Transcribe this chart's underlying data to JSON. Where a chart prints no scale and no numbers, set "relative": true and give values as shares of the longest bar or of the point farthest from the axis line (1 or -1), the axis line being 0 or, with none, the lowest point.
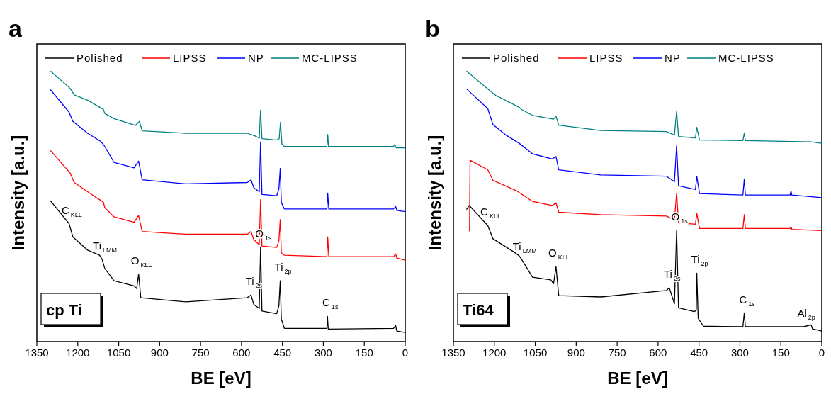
{
  "chart_data": [
    {
      "type": "line",
      "title": "a",
      "xlabel": "BE [eV]",
      "ylabel": "Intensity [a.u.]",
      "relative": true,
      "xlim": [
        1350,
        0
      ],
      "xticks": [
        1350,
        1200,
        1050,
        900,
        750,
        600,
        450,
        300,
        150,
        0
      ],
      "grid": false,
      "legend": "top",
      "marker": "none",
      "line_style": "solid",
      "annotations": [
        "cp Ti",
        {
          "text": "C$_{KLL}$",
          "x": 1232,
          "y": 0.436
        },
        {
          "text": "Ti$_{LMM}$",
          "x": 1111,
          "y": 0.304
        },
        {
          "text": "O$_{KLL}$",
          "x": 977,
          "y": 0.25
        },
        {
          "text": "Ti$_{2s}$",
          "x": 565,
          "y": 0.172
        },
        {
          "text": "O$_{1s}$",
          "x": 530,
          "y": 0.348
        },
        {
          "text": "Ti$_{2p}$",
          "x": 458,
          "y": 0.225
        },
        {
          "text": "C$_{1s}$",
          "x": 285,
          "y": 0.093
        }
      ],
      "series": [
        {
          "name": "Polished",
          "color": "#000000",
          "x": [
            1300,
            1232,
            1218,
            1164,
            1120,
            1111,
            1101,
            1067,
            994,
            984,
            977,
            969,
            804,
            579,
            565,
            555,
            535,
            530,
            525,
            471,
            463,
            458,
            454,
            443,
            287,
            285,
            282,
            43,
            35,
            31,
            0
          ],
          "values": [
            0.52,
            0.436,
            0.387,
            0.338,
            0.319,
            0.304,
            0.27,
            0.225,
            0.206,
            0.196,
            0.25,
            0.162,
            0.147,
            0.162,
            0.172,
            0.137,
            0.123,
            0.348,
            0.113,
            0.103,
            0.132,
            0.225,
            0.083,
            0.049,
            0.049,
            0.093,
            0.046,
            0.049,
            0.059,
            0.039,
            0.034
          ]
        },
        {
          "name": "LIPSS",
          "color": "#ff0000",
          "x": [
            1300,
            1228,
            1213,
            1164,
            1106,
            1101,
            1067,
            994,
            977,
            964,
            804,
            579,
            565,
            555,
            535,
            530,
            525,
            471,
            463,
            458,
            454,
            443,
            287,
            284,
            280,
            43,
            35,
            31,
            0
          ],
          "values": [
            0.706,
            0.623,
            0.588,
            0.554,
            0.515,
            0.495,
            0.461,
            0.441,
            0.466,
            0.407,
            0.397,
            0.397,
            0.407,
            0.377,
            0.358,
            0.525,
            0.353,
            0.348,
            0.373,
            0.451,
            0.328,
            0.319,
            0.314,
            0.387,
            0.314,
            0.314,
            0.324,
            0.309,
            0.301
          ]
        },
        {
          "name": "NP",
          "color": "#0000ff",
          "x": [
            1300,
            1232,
            1218,
            1164,
            1116,
            1101,
            1067,
            994,
            977,
            964,
            804,
            579,
            565,
            555,
            535,
            530,
            525,
            471,
            463,
            458,
            454,
            443,
            287,
            284,
            280,
            43,
            35,
            31,
            0
          ],
          "values": [
            0.931,
            0.848,
            0.814,
            0.77,
            0.74,
            0.721,
            0.662,
            0.642,
            0.667,
            0.598,
            0.583,
            0.588,
            0.598,
            0.569,
            0.554,
            0.738,
            0.544,
            0.539,
            0.564,
            0.64,
            0.515,
            0.49,
            0.49,
            0.549,
            0.49,
            0.49,
            0.5,
            0.485,
            0.48
          ]
        },
        {
          "name": "MC-LIPSS",
          "color": "#008080",
          "x": [
            1300,
            1228,
            1213,
            1164,
            1106,
            1101,
            1067,
            989,
            974,
            964,
            804,
            579,
            550,
            535,
            530,
            525,
            471,
            462,
            457,
            452,
            443,
            287,
            284,
            281,
            43,
            38,
            33,
            0
          ],
          "values": [
            1.0,
            0.936,
            0.912,
            0.892,
            0.858,
            0.843,
            0.824,
            0.799,
            0.814,
            0.779,
            0.77,
            0.77,
            0.76,
            0.752,
            0.856,
            0.75,
            0.745,
            0.75,
            0.811,
            0.73,
            0.721,
            0.721,
            0.765,
            0.721,
            0.721,
            0.728,
            0.716,
            0.716
          ]
        }
      ]
    },
    {
      "type": "line",
      "title": "b",
      "xlabel": "BE [eV]",
      "ylabel": "Intensity [a.u.]",
      "relative": true,
      "xlim": [
        1350,
        0
      ],
      "xticks": [
        1350,
        1200,
        1050,
        900,
        750,
        600,
        450,
        300,
        150,
        0
      ],
      "grid": false,
      "legend": "top",
      "marker": "none",
      "line_style": "solid",
      "annotations": [
        "Ti64",
        {
          "text": "C$_{KLL}$",
          "x": 1224,
          "y": 0.429
        },
        {
          "text": "Ti$_{LMM}$",
          "x": 1099,
          "y": 0.302
        },
        {
          "text": "O$_{KLL}$",
          "x": 974,
          "y": 0.277
        },
        {
          "text": "Ti$_{2s}$",
          "x": 559,
          "y": 0.199
        },
        {
          "text": "O$_{1s}$",
          "x": 532,
          "y": 0.41
        },
        {
          "text": "Ti$_{2p}$",
          "x": 458,
          "y": 0.253
        },
        {
          "text": "C$_{1s}$",
          "x": 284,
          "y": 0.106
        },
        {
          "text": "Al$_{2p}$",
          "x": 67,
          "y": 0.055
        }
      ],
      "series": [
        {
          "name": "Polished",
          "color": "#000000",
          "x": [
            1302,
            1292,
            1224,
            1205,
            1128,
            1109,
            1099,
            1060,
            993,
            983,
            974,
            964,
            810,
            569,
            559,
            540,
            532,
            525,
            467,
            460,
            458,
            453,
            434,
            289,
            284,
            280,
            67,
            39,
            34,
            0
          ],
          "values": [
            0.488,
            0.503,
            0.429,
            0.38,
            0.331,
            0.317,
            0.302,
            0.238,
            0.228,
            0.214,
            0.277,
            0.17,
            0.165,
            0.189,
            0.199,
            0.14,
            0.41,
            0.125,
            0.111,
            0.116,
            0.253,
            0.086,
            0.057,
            0.055,
            0.106,
            0.055,
            0.055,
            0.062,
            0.047,
            0.039
          ]
        },
        {
          "name": "LIPSS",
          "color": "#ff0000",
          "x": [
            1291,
            1289,
            1224,
            1205,
            1118,
            1060,
            988,
            974,
            964,
            810,
            569,
            540,
            532,
            525,
            463,
            458,
            448,
            289,
            284,
            280,
            116,
            113,
            110,
            0
          ],
          "values": [
            0.408,
            0.67,
            0.635,
            0.596,
            0.557,
            0.518,
            0.503,
            0.513,
            0.478,
            0.469,
            0.464,
            0.449,
            0.549,
            0.439,
            0.434,
            0.474,
            0.418,
            0.418,
            0.469,
            0.418,
            0.418,
            0.425,
            0.415,
            0.41
          ]
        },
        {
          "name": "NP",
          "color": "#0000ff",
          "x": [
            1302,
            1224,
            1205,
            1157,
            1109,
            1060,
            988,
            974,
            964,
            810,
            569,
            540,
            532,
            525,
            463,
            458,
            448,
            289,
            284,
            280,
            116,
            113,
            110,
            0
          ],
          "values": [
            0.934,
            0.861,
            0.802,
            0.763,
            0.733,
            0.694,
            0.675,
            0.684,
            0.635,
            0.616,
            0.611,
            0.591,
            0.724,
            0.576,
            0.562,
            0.611,
            0.547,
            0.542,
            0.601,
            0.542,
            0.542,
            0.557,
            0.542,
            0.532
          ]
        },
        {
          "name": "MC-LIPSS",
          "color": "#008080",
          "x": [
            1302,
            1224,
            1195,
            1109,
            1099,
            1060,
            983,
            974,
            964,
            810,
            569,
            540,
            532,
            525,
            463,
            458,
            448,
            289,
            284,
            280,
            39,
            0
          ],
          "values": [
            1.0,
            0.934,
            0.91,
            0.866,
            0.857,
            0.836,
            0.822,
            0.833,
            0.8,
            0.78,
            0.776,
            0.763,
            0.851,
            0.758,
            0.753,
            0.792,
            0.745,
            0.743,
            0.771,
            0.743,
            0.738,
            0.733
          ]
        }
      ]
    }
  ]
}
